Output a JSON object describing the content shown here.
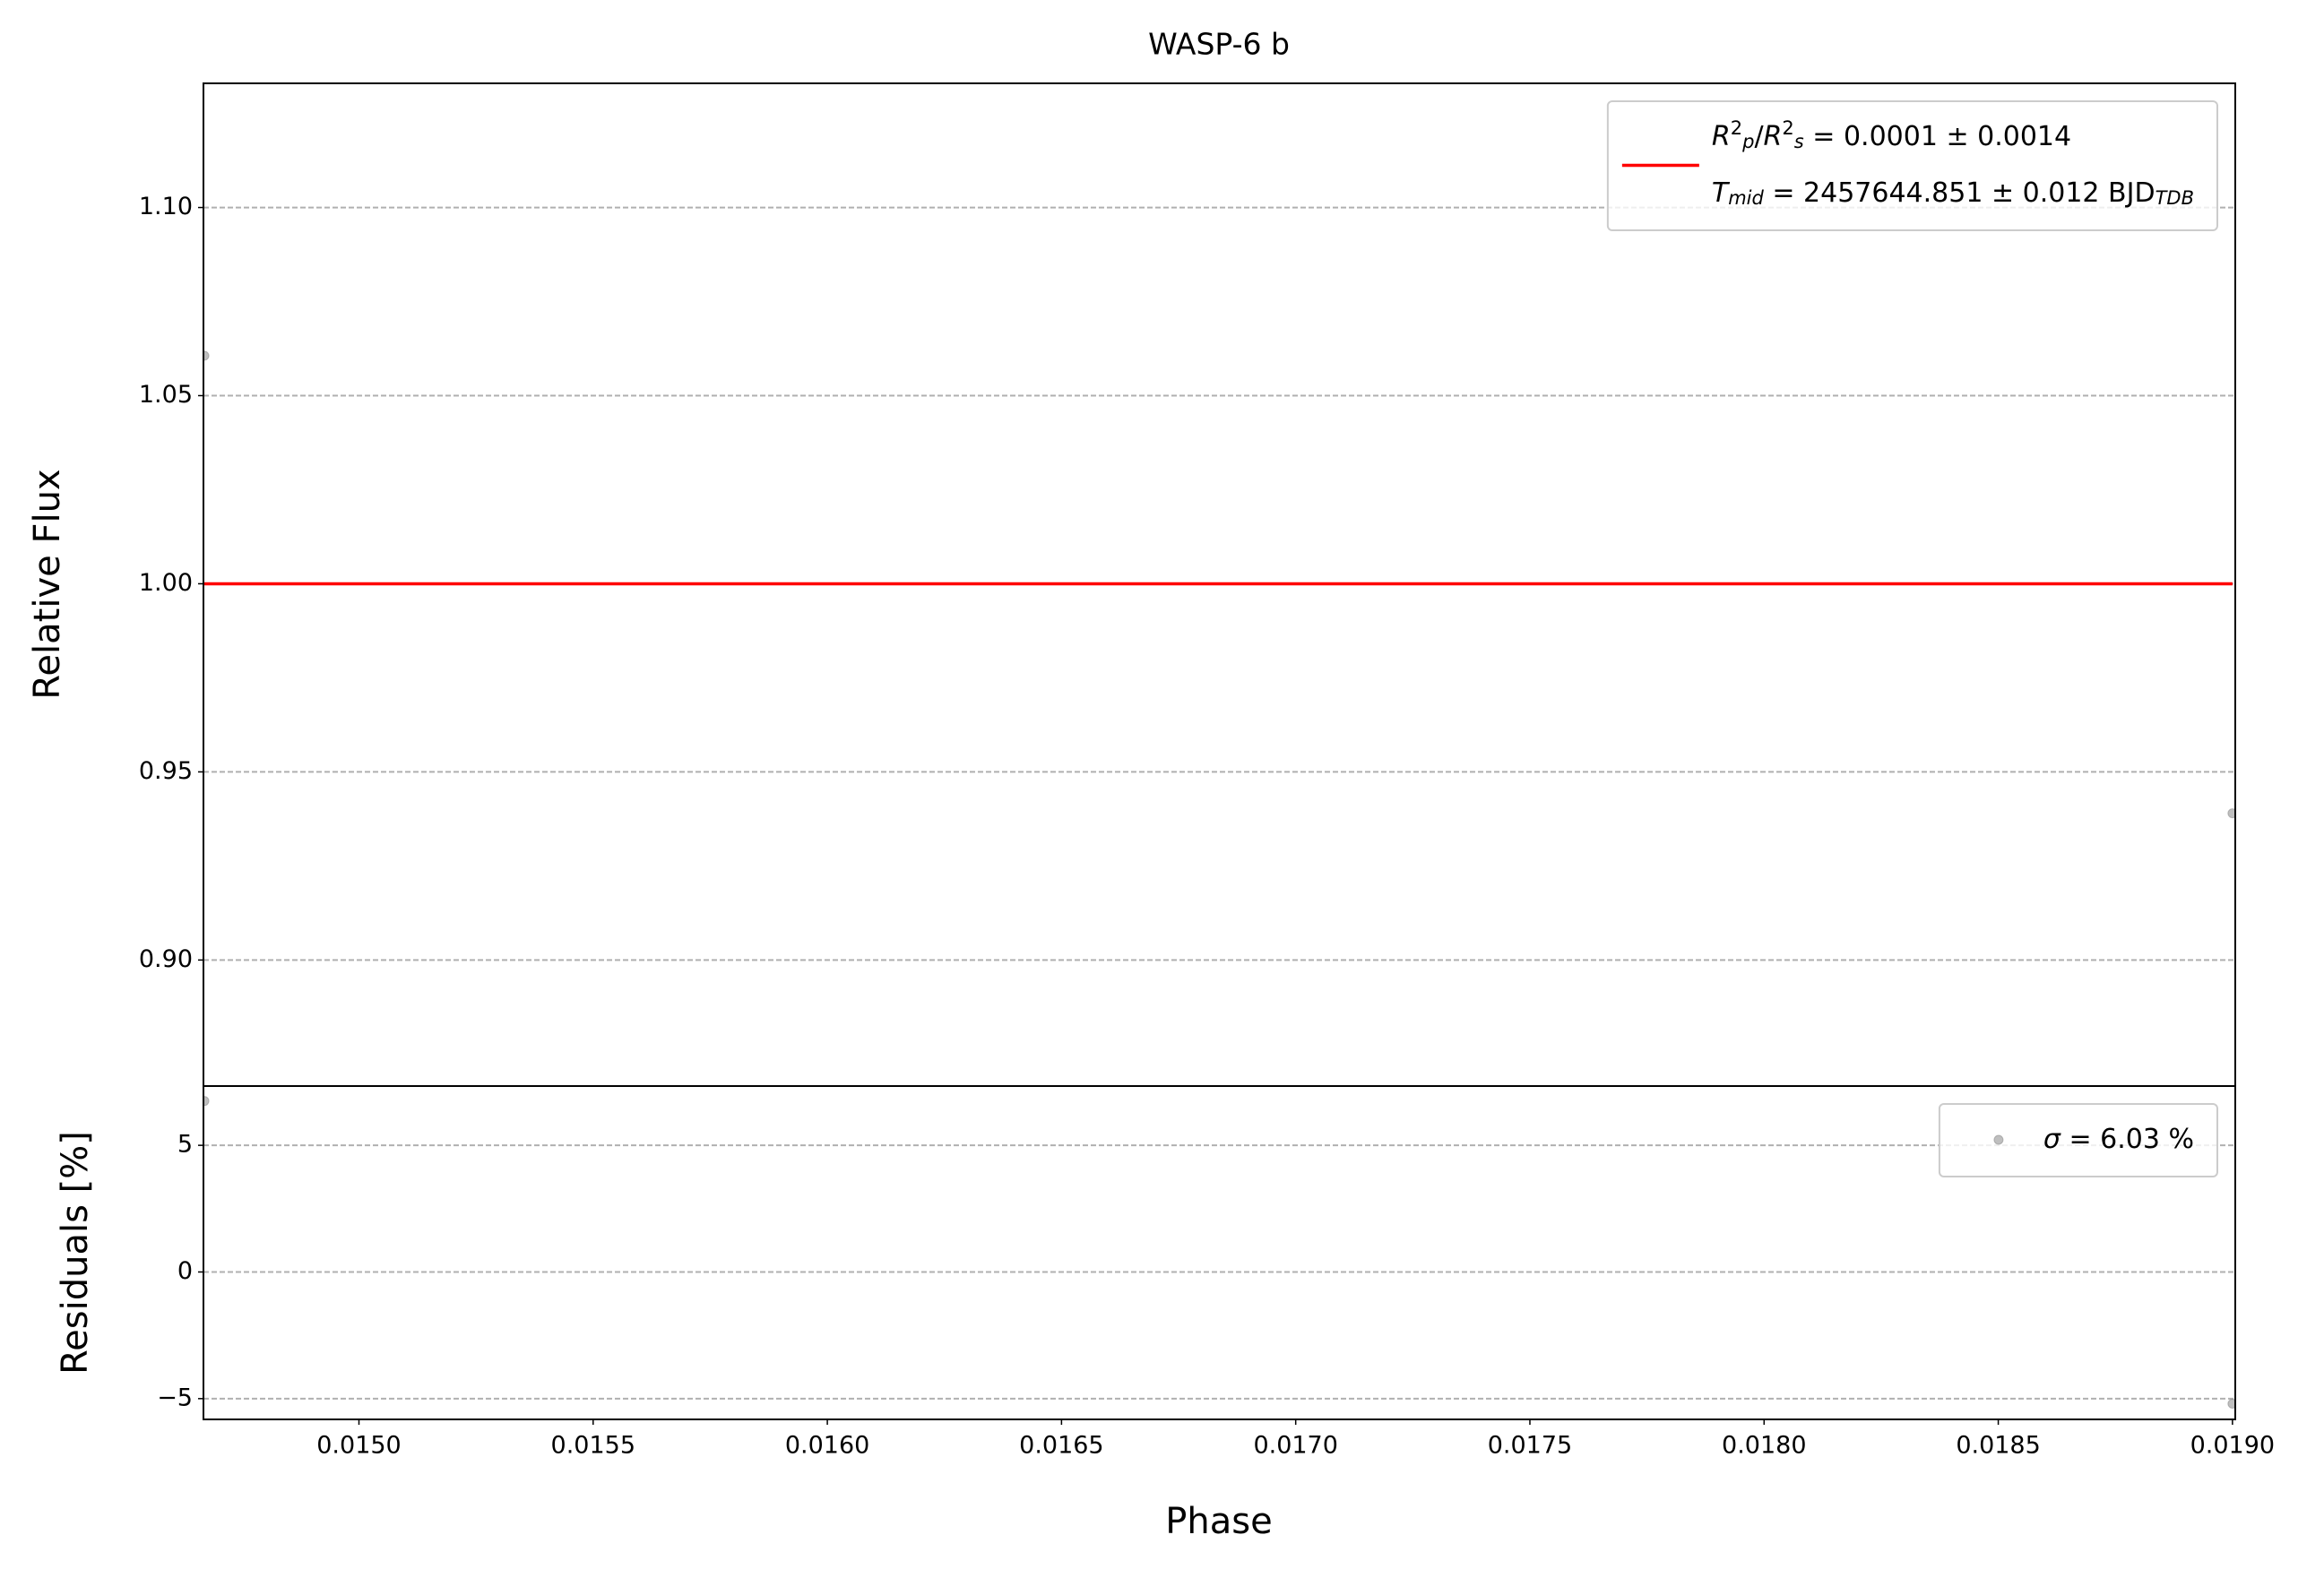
{
  "chart_data": [
    {
      "type": "line",
      "title": "WASP-6 b",
      "ylabel": "Relative Flux",
      "xlim": [
        0.014668,
        0.019006
      ],
      "ylim": [
        0.8665,
        1.133
      ],
      "yticks": [
        {
          "value": 0.9,
          "label": "0.90"
        },
        {
          "value": 0.95,
          "label": "0.95"
        },
        {
          "value": 1.0,
          "label": "1.00"
        },
        {
          "value": 1.05,
          "label": "1.05"
        },
        {
          "value": 1.1,
          "label": "1.10"
        }
      ],
      "grid": true,
      "legend": "upper right",
      "series": [
        {
          "x": [
            0.01467,
            0.019
          ],
          "values": [
            1.0606,
            0.939
          ],
          "color": "#808080",
          "marker": "o"
        },
        {
          "name": [
            [
              {
                "text": "R",
                "italic": true
              },
              {
                "text": "2",
                "shift": "sup"
              },
              {
                "text": "p",
                "shift": "sub",
                "italic": true
              },
              {
                "text": "/"
              },
              {
                "text": "R",
                "italic": true
              },
              {
                "text": "2",
                "shift": "sup"
              },
              {
                "text": "s",
                "shift": "sub",
                "italic": true
              },
              {
                "text": " = 0.0001 ± 0.0014"
              }
            ],
            [
              {
                "text": "T",
                "italic": true
              },
              {
                "text": "mid",
                "shift": "sub",
                "italic": true
              },
              {
                "text": " = 2457644.851 ± 0.012 BJD"
              },
              {
                "text": "TDB",
                "shift": "sub",
                "italic": true
              }
            ]
          ],
          "x": [
            0.01467,
            0.019
          ],
          "values": [
            1.0,
            1.0
          ],
          "color": "#ff0000",
          "marker": "line"
        }
      ]
    },
    {
      "type": "scatter",
      "xlabel": "Phase",
      "ylabel": "Residuals [%]",
      "xlim": [
        0.014668,
        0.019006
      ],
      "ylim": [
        -5.82,
        7.34
      ],
      "xticks": [
        {
          "value": 0.015,
          "label": "0.0150"
        },
        {
          "value": 0.0155,
          "label": "0.0155"
        },
        {
          "value": 0.016,
          "label": "0.0160"
        },
        {
          "value": 0.0165,
          "label": "0.0165"
        },
        {
          "value": 0.017,
          "label": "0.0170"
        },
        {
          "value": 0.0175,
          "label": "0.0175"
        },
        {
          "value": 0.018,
          "label": "0.0180"
        },
        {
          "value": 0.0185,
          "label": "0.0185"
        },
        {
          "value": 0.019,
          "label": "0.0190"
        }
      ],
      "yticks": [
        {
          "value": -5,
          "label": "−5"
        },
        0,
        5
      ],
      "grid": true,
      "legend": "upper right",
      "series": [
        {
          "name": [
            [
              {
                "text": "σ",
                "italic": true
              },
              {
                "text": " = 6.03 %"
              }
            ]
          ],
          "x": [
            0.01467,
            0.019
          ],
          "values": [
            6.75,
            -5.2
          ],
          "color": "#808080",
          "marker": "o"
        }
      ]
    }
  ]
}
